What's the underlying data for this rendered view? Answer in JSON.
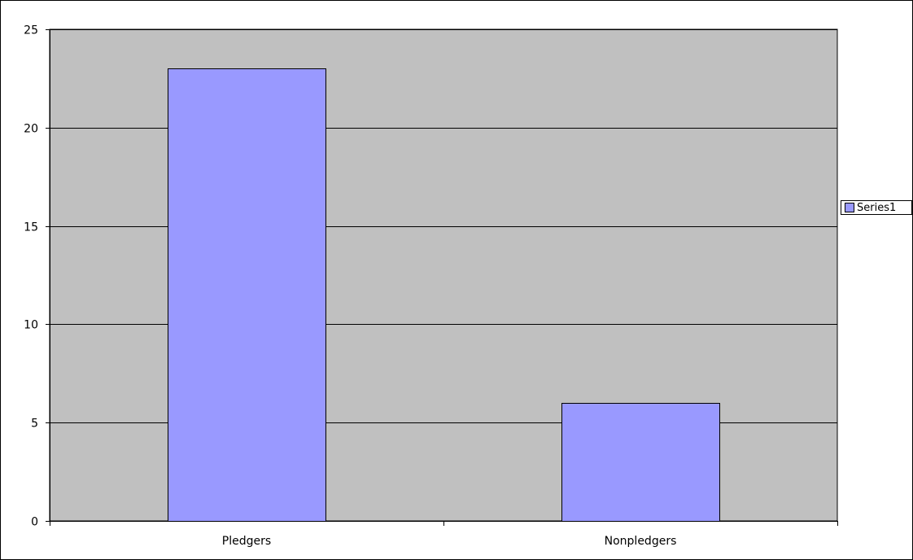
{
  "chart_data": {
    "type": "bar",
    "categories": [
      "Pledgers",
      "Nonpledgers"
    ],
    "series": [
      {
        "name": "Series1",
        "values": [
          23,
          6
        ]
      }
    ],
    "title": "",
    "xlabel": "",
    "ylabel": "",
    "ylim": [
      0,
      25
    ],
    "y_ticks": [
      0,
      5,
      10,
      15,
      20,
      25
    ],
    "y_tick_labels": [
      "0",
      "5",
      "10",
      "15",
      "20",
      "25"
    ],
    "grid": true,
    "legend_position": "right",
    "colors": {
      "bar_fill": "#9999ff",
      "plot_background": "#c0c0c0",
      "gridline": "#000000",
      "outline": "#000000"
    }
  }
}
